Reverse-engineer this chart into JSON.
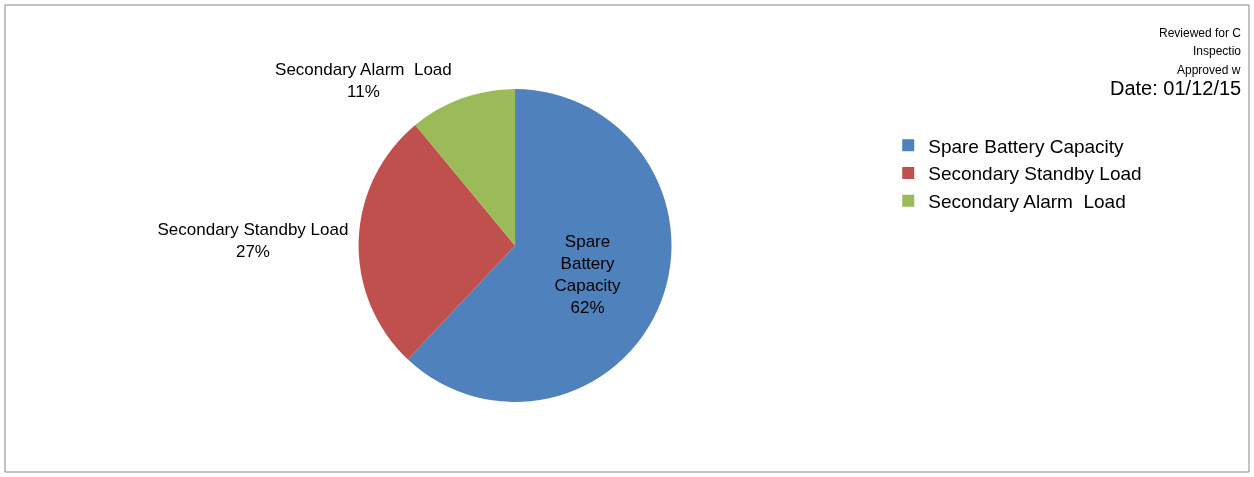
{
  "chart_data": {
    "type": "pie",
    "categories": [
      "Spare Battery Capacity",
      "Secondary Standby Load",
      "Secondary Alarm  Load"
    ],
    "values": [
      62,
      27,
      11
    ],
    "colors": [
      "#4f81bd",
      "#c0504d",
      "#9bbb59"
    ],
    "value_labels": [
      "62%",
      "27%",
      "11%"
    ],
    "legend": "right",
    "annotations": [
      "Reviewed for C",
      "Inspectio",
      "Approved w",
      "Date: 01/12/15"
    ]
  }
}
